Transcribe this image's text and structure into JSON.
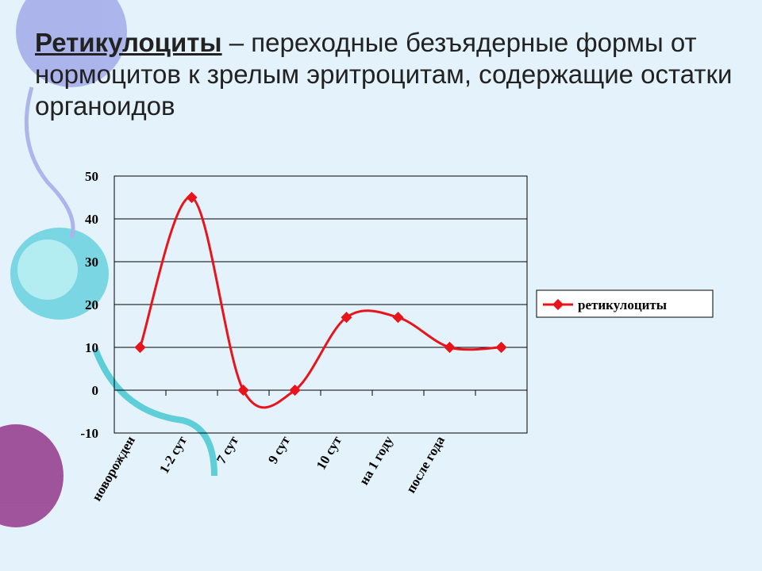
{
  "title_term": "Ретикулоциты",
  "title_rest": " – переходные безъядерные формы от нормоцитов к зрелым эритроцитам, содержащие остатки органоидов",
  "chart_data": {
    "type": "line",
    "categories": [
      "новорожден",
      "1-2 сут",
      "7 сут",
      "9 сут",
      "10 сут",
      "на 1 году",
      "после года",
      null
    ],
    "series": [
      {
        "name": "ретикулоциты",
        "color": "#e8141b",
        "values": [
          10,
          45,
          0,
          0,
          17,
          17,
          10,
          10
        ]
      }
    ],
    "ylim": [
      -10,
      50
    ],
    "yticks": [
      -10,
      0,
      10,
      20,
      30,
      40,
      50
    ],
    "grid": true,
    "legend": "right"
  }
}
